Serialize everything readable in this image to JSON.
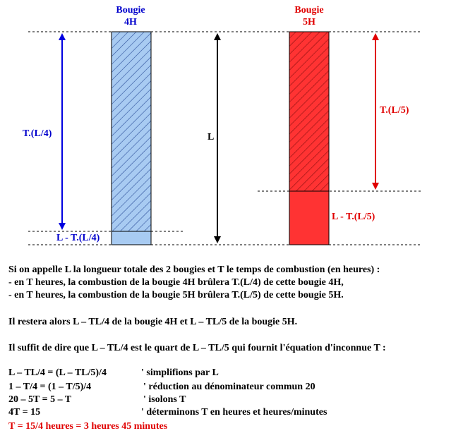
{
  "candles": [
    {
      "title_line1": "Bougie",
      "title_line2": "4H",
      "burned_label": "T.(L/4)",
      "remaining_label": "L - T.(L/4)"
    },
    {
      "title_line1": "Bougie",
      "title_line2": "5H",
      "burned_label": "T.(L/5)",
      "remaining_label": "L - T.(L/5)"
    }
  ],
  "length_label": "L",
  "text": {
    "intro": [
      "Si on appelle L la longueur totale des 2 bougies et T le temps de combustion (en heures)  :",
      "- en T heures, la combustion de la bougie 4H brûlera T.(L/4) de cette bougie 4H,",
      "- en T heures, la combustion de la bougie 5H brûlera T.(L/5) de cette bougie 5H."
    ],
    "remaining": "Il restera alors L – TL/4 de la bougie 4H et L – TL/5 de la bougie 5H.",
    "condition": "Il suffit de dire que L – TL/4 est le quart de L – TL/5 qui fournit l'équation d'inconnue T :",
    "equations": [
      [
        "L – TL/4 = (L – TL/5)/4",
        "' simplifions par L"
      ],
      [
        "1 – T/4 = (1 – T/5)/4",
        "' réduction au dénominateur commun 20"
      ],
      [
        "20 – 5T = 5 – T",
        "' isolons T"
      ],
      [
        "4T = 15",
        "' déterminons T en heures et heures/minutes"
      ]
    ],
    "result": "T = 15/4 heures = 3 heures 45 minutes"
  }
}
